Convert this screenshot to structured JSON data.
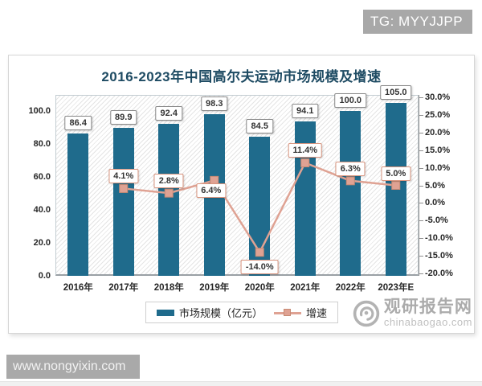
{
  "badges": {
    "tg": "TG: MYYJJPP",
    "site": "www.nongyixin.com"
  },
  "chart": {
    "title": "2016-2023年中国高尔夫运动市场规模及增速",
    "watermark_name": "观研报告网",
    "watermark_domain": "chinabaogao.com"
  },
  "chart_data": {
    "type": "combo-bar-line",
    "title": "2016-2023年中国高尔夫运动市场规模及增速",
    "categories": [
      "2016年",
      "2017年",
      "2018年",
      "2019年",
      "2020年",
      "2021年",
      "2022年",
      "2023年E"
    ],
    "series": [
      {
        "name": "市场规模（亿元）",
        "type": "bar",
        "axis": "left",
        "color": "#1f6b8c",
        "values": [
          86.4,
          89.9,
          92.4,
          98.3,
          84.5,
          94.1,
          100.0,
          105.0
        ]
      },
      {
        "name": "增速",
        "type": "line",
        "axis": "right",
        "color": "#dfa293",
        "unit": "%",
        "values": [
          null,
          4.1,
          2.8,
          6.4,
          -14.0,
          11.4,
          6.3,
          5.0
        ]
      }
    ],
    "left_axis": {
      "ticks": [
        "100.0",
        "80.0",
        "60.0",
        "40.0",
        "20.0",
        "0.0"
      ],
      "min": 0,
      "max": 110
    },
    "right_axis": {
      "ticks": [
        "30.0%",
        "25.0%",
        "20.0%",
        "15.0%",
        "10.0%",
        "5.0%",
        "0.0%",
        "-5.0%",
        "-10.0%",
        "-15.0%",
        "-20.0%"
      ],
      "min": -20,
      "max": 30
    },
    "data_labels": {
      "bar": [
        "86.4",
        "89.9",
        "92.4",
        "98.3",
        "84.5",
        "94.1",
        "100.0",
        "105.0"
      ],
      "line": [
        null,
        "4.1%",
        "2.8%",
        "6.4%",
        "-14.0%",
        "11.4%",
        "6.3%",
        "5.0%"
      ]
    },
    "legend_position": "bottom",
    "grid": false,
    "plot_background": "diagonal-hatch"
  }
}
